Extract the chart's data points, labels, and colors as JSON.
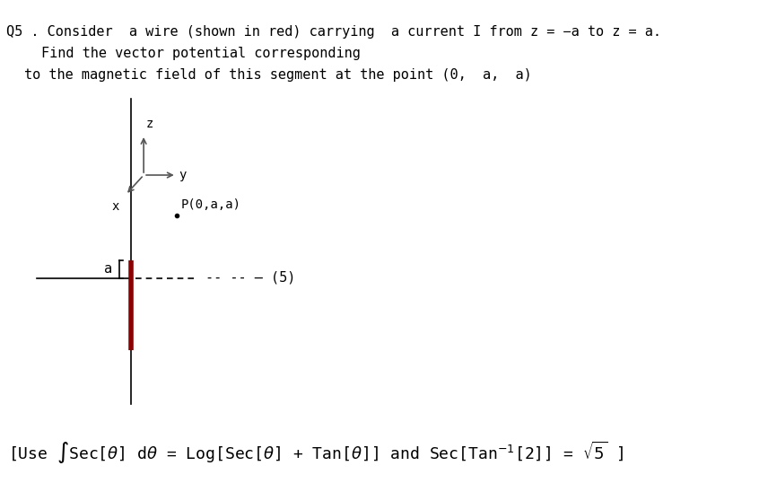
{
  "bg_color": "#ffffff",
  "title_lines": [
    "Q5 .  Consider  a wire (shown in red) carrying  a current I from z = −a to z = a.",
    "   Find the vector potential corresponding",
    "to the magnetic field of this segment at the point (0,  a,  a)"
  ],
  "hint_line": "[Use ∯Sec[θ] dθ = Log[Sec[θ] + Tan[θ]] and Sec[Tan⁻¹[2]] = √5 ]",
  "score_label": "-- -- – (5)",
  "point_label": "P(0,a,a)",
  "axis_label_x": "x",
  "axis_label_y": "y",
  "axis_label_z": "z",
  "bracket_label": "a"
}
